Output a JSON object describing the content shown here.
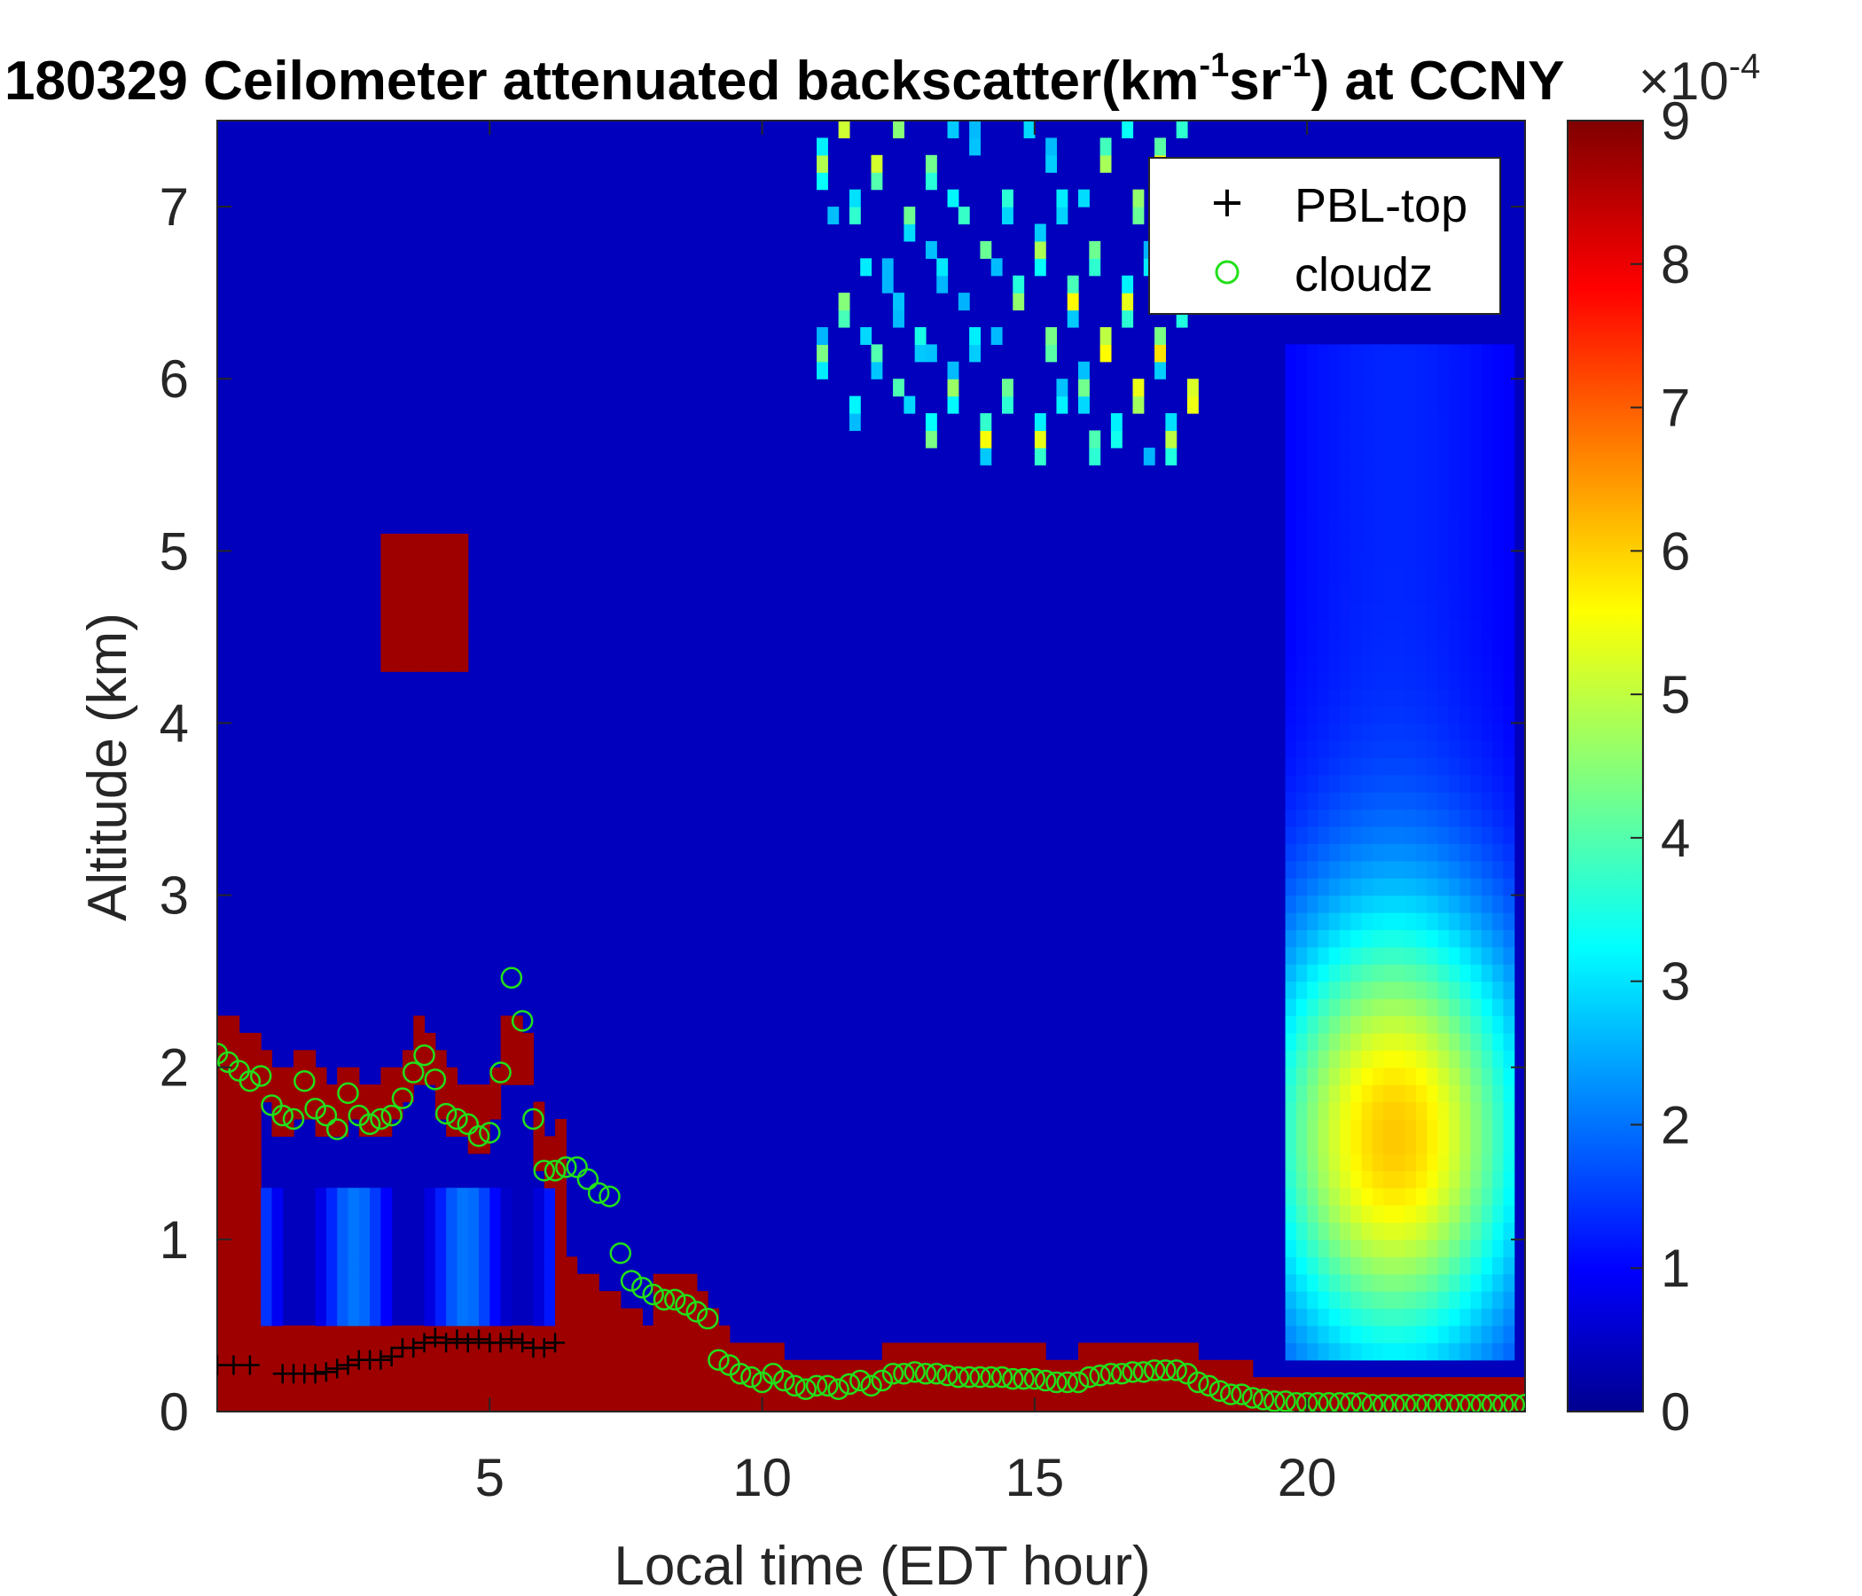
{
  "chart_data": {
    "type": "heatmap",
    "title_main": "180329 Ceilometer attenuated backscatter(km",
    "title_sup1": "-1",
    "title_mid": "sr",
    "title_sup2": "-1",
    "title_end": ") at CCNY",
    "xlabel": "Local time (EDT hour)",
    "ylabel": "Altitude (km)",
    "xlim": [
      0,
      24
    ],
    "ylim": [
      0,
      7.5
    ],
    "xticks": [
      5,
      10,
      15,
      20
    ],
    "yticks": [
      0,
      1,
      2,
      3,
      4,
      5,
      6,
      7
    ],
    "colorbar": {
      "colormap": "jet",
      "range": [
        0,
        9
      ],
      "ticks": [
        0,
        1,
        2,
        3,
        4,
        5,
        6,
        7,
        8,
        9
      ],
      "exponent_base": "×10",
      "exponent": "-4"
    },
    "legend": {
      "position": "top-right",
      "entries": [
        {
          "label": "PBL-top",
          "marker": "+",
          "color": "#000000"
        },
        {
          "label": "cloudz",
          "marker": "o",
          "color": "#22e01a"
        }
      ]
    },
    "series": [
      {
        "name": "PBL-top",
        "marker": "+",
        "x": [
          0.0,
          0.3,
          0.6,
          1.2,
          1.4,
          1.6,
          1.8,
          2.0,
          2.2,
          2.4,
          2.6,
          2.8,
          3.0,
          3.2,
          3.4,
          3.6,
          3.8,
          4.0,
          4.2,
          4.4,
          4.6,
          4.8,
          5.0,
          5.2,
          5.4,
          5.6,
          5.8,
          6.0,
          6.2
        ],
        "y": [
          0.27,
          0.27,
          0.27,
          0.22,
          0.22,
          0.22,
          0.22,
          0.23,
          0.25,
          0.27,
          0.3,
          0.3,
          0.3,
          0.32,
          0.37,
          0.37,
          0.4,
          0.43,
          0.4,
          0.42,
          0.4,
          0.42,
          0.4,
          0.4,
          0.42,
          0.4,
          0.37,
          0.37,
          0.4
        ]
      },
      {
        "name": "cloudz",
        "marker": "o",
        "x": [
          0.0,
          0.2,
          0.4,
          0.6,
          0.8,
          1.0,
          1.2,
          1.4,
          1.6,
          1.8,
          2.0,
          2.2,
          2.4,
          2.6,
          2.8,
          3.0,
          3.2,
          3.4,
          3.6,
          3.8,
          4.0,
          4.2,
          4.4,
          4.6,
          4.8,
          5.0,
          5.2,
          5.4,
          5.6,
          5.8,
          6.0,
          6.2,
          6.4,
          6.6,
          6.8,
          7.0,
          7.2,
          7.4,
          7.6,
          7.8,
          8.0,
          8.2,
          8.4,
          8.6,
          8.8,
          9.0,
          9.2,
          9.4,
          9.6,
          9.8,
          10.0,
          10.2,
          10.4,
          10.6,
          10.8,
          11.0,
          11.2,
          11.4,
          11.6,
          11.8,
          12.0,
          12.2,
          12.4,
          12.6,
          12.8,
          13.0,
          13.2,
          13.4,
          13.6,
          13.8,
          14.0,
          14.2,
          14.4,
          14.6,
          14.8,
          15.0,
          15.2,
          15.4,
          15.6,
          15.8,
          16.0,
          16.2,
          16.4,
          16.6,
          16.8,
          17.0,
          17.2,
          17.4,
          17.6,
          17.8,
          18.0,
          18.2,
          18.4,
          18.6,
          18.8,
          19.0,
          19.2,
          19.4,
          19.6,
          19.8,
          20.0,
          20.2,
          20.4,
          20.6,
          20.8,
          21.0,
          21.2,
          21.4,
          21.6,
          21.8,
          22.0,
          22.2,
          22.4,
          22.6,
          22.8,
          23.0,
          23.2,
          23.4,
          23.6,
          23.8,
          24.0
        ],
        "y": [
          2.08,
          2.03,
          1.98,
          1.92,
          1.95,
          1.78,
          1.72,
          1.7,
          1.92,
          1.76,
          1.72,
          1.64,
          1.85,
          1.72,
          1.67,
          1.7,
          1.72,
          1.82,
          1.97,
          2.07,
          1.93,
          1.73,
          1.7,
          1.67,
          1.6,
          1.62,
          1.97,
          2.52,
          2.27,
          1.7,
          1.4,
          1.4,
          1.42,
          1.42,
          1.35,
          1.27,
          1.25,
          0.92,
          0.76,
          0.72,
          0.68,
          0.65,
          0.65,
          0.62,
          0.58,
          0.54,
          0.3,
          0.27,
          0.22,
          0.2,
          0.17,
          0.22,
          0.18,
          0.15,
          0.13,
          0.15,
          0.15,
          0.13,
          0.16,
          0.18,
          0.15,
          0.18,
          0.22,
          0.22,
          0.23,
          0.22,
          0.22,
          0.21,
          0.2,
          0.2,
          0.2,
          0.2,
          0.2,
          0.19,
          0.19,
          0.19,
          0.18,
          0.17,
          0.17,
          0.17,
          0.2,
          0.21,
          0.22,
          0.22,
          0.23,
          0.23,
          0.24,
          0.24,
          0.24,
          0.22,
          0.17,
          0.15,
          0.12,
          0.1,
          0.1,
          0.08,
          0.07,
          0.06,
          0.06,
          0.05,
          0.05,
          0.05,
          0.05,
          0.05,
          0.05,
          0.05,
          0.04,
          0.04,
          0.04,
          0.04,
          0.04,
          0.04,
          0.04,
          0.04,
          0.04,
          0.04,
          0.04,
          0.04,
          0.04,
          0.04,
          0.04
        ]
      }
    ]
  }
}
